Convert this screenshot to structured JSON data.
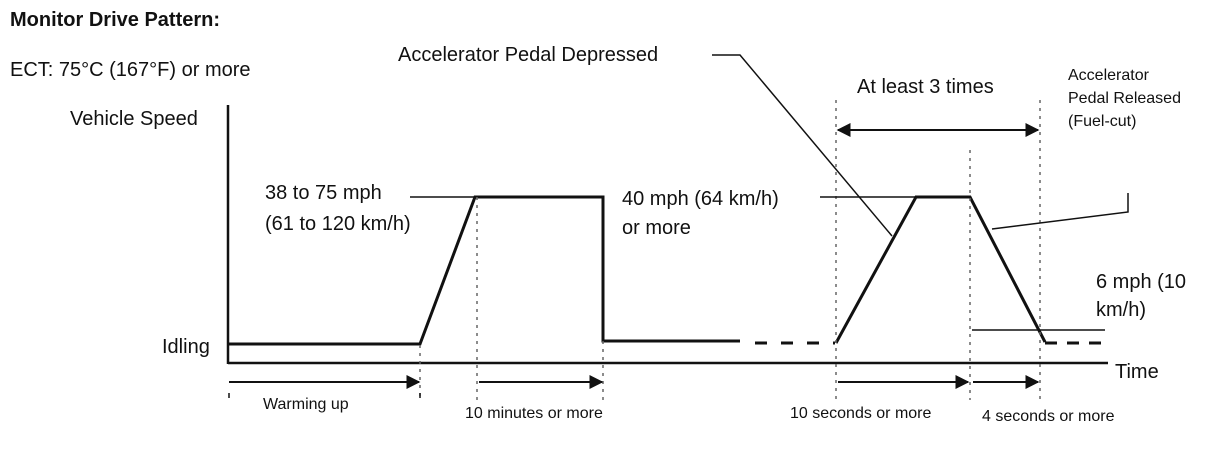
{
  "title": "Monitor Drive Pattern:",
  "condition": "ECT: 75°C (167°F) or more",
  "axis": {
    "y_label": "Vehicle Speed",
    "x_label": "Time",
    "idle_label": "Idling"
  },
  "annotations": {
    "speed_range_line1": "38 to 75 mph",
    "speed_range_line2": "(61 to 120 km/h)",
    "target_speed_line1": "40 mph (64 km/h)",
    "target_speed_line2": "or more",
    "pedal_depressed": "Accelerator Pedal Depressed",
    "repeat": "At least 3 times",
    "pedal_released_line1": "Accelerator",
    "pedal_released_line2": "Pedal Released",
    "pedal_released_line3": "(Fuel-cut)",
    "low_speed_line1": "6 mph (10",
    "low_speed_line2": "km/h)"
  },
  "phases": {
    "warming_up": "Warming up",
    "cruise_duration": "10 minutes or more",
    "accel_duration": "10 seconds or more",
    "decel_duration": "4 seconds or more"
  },
  "colors": {
    "line": "#111111",
    "background": "#ffffff"
  }
}
